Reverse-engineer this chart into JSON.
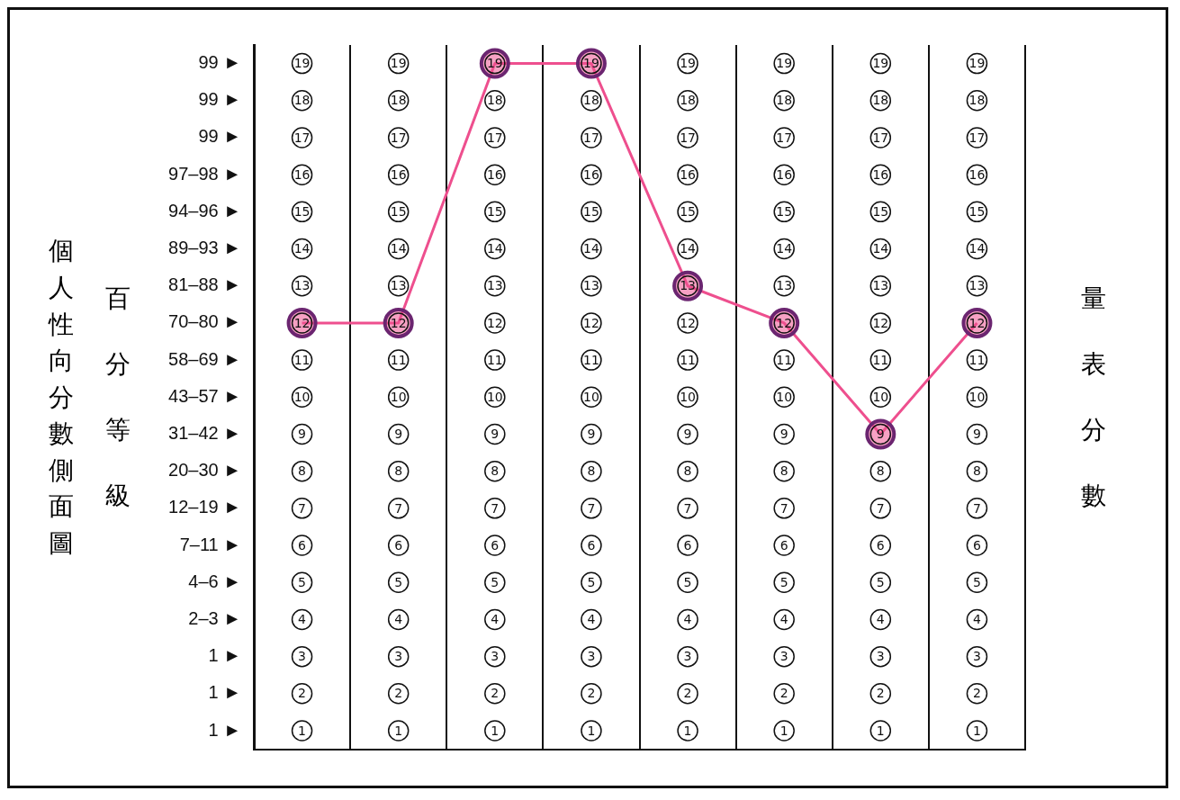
{
  "chart_data": {
    "type": "line",
    "title": "個人性向分數側面圖",
    "ylabel": "百分等級",
    "y2label": "量表分數",
    "categories": [
      null,
      null,
      null,
      null,
      null,
      null,
      null,
      null
    ],
    "series": [
      {
        "color": "#ee4f8e",
        "values": [
          12,
          12,
          19,
          19,
          13,
          12,
          9,
          12
        ]
      }
    ],
    "ylim": [
      0.5,
      19.5
    ],
    "yticks": [
      1,
      2,
      3,
      4,
      5,
      6,
      7,
      8,
      9,
      10,
      11,
      12,
      13,
      14,
      15,
      16,
      17,
      18,
      19
    ],
    "annotations": [
      "99 ►",
      "99 ►",
      "99 ►",
      "97–98 ►",
      "94–96 ►",
      "89–93 ►",
      "81–88 ►",
      "70–80 ►",
      "58–69 ►",
      "43–57 ►",
      "31–42 ►",
      "20–30 ►",
      "12–19 ►",
      "7–11 ►",
      "4–6 ►",
      "2–3 ►",
      "1 ►",
      "1 ►",
      "1 ►",
      "19",
      "18",
      "17",
      "16",
      "15",
      "14",
      "13",
      "12",
      "11",
      "10",
      "9",
      "8",
      "7",
      "6",
      "5",
      "4",
      "3",
      "2",
      "1",
      "19",
      "18",
      "17",
      "16",
      "15",
      "14",
      "13",
      "12",
      "11",
      "10",
      "9",
      "8",
      "7",
      "6",
      "5",
      "4",
      "3",
      "2",
      "1",
      "19",
      "18",
      "17",
      "16",
      "15",
      "14",
      "13",
      "12",
      "11",
      "10",
      "9",
      "8",
      "7",
      "6",
      "5",
      "4",
      "3",
      "2",
      "1",
      "19",
      "18",
      "17",
      "16",
      "15",
      "14",
      "13",
      "12",
      "11",
      "10",
      "9",
      "8",
      "7",
      "6",
      "5",
      "4",
      "3",
      "2",
      "1",
      "19",
      "18",
      "17",
      "16",
      "15",
      "14",
      "13",
      "12",
      "11",
      "10",
      "9",
      "8",
      "7",
      "6",
      "5",
      "4",
      "3",
      "2",
      "1",
      "19",
      "18",
      "17",
      "16",
      "15",
      "14",
      "13",
      "12",
      "11",
      "10",
      "9",
      "8",
      "7",
      "6",
      "5",
      "4",
      "3",
      "2",
      "1",
      "19",
      "18",
      "17",
      "16",
      "15",
      "14",
      "13",
      "12",
      "11",
      "10",
      "9",
      "8",
      "7",
      "6",
      "5",
      "4",
      "3",
      "2",
      "1"
    ],
    "grid": "x",
    "marker": "circle",
    "line_style": "solid",
    "legend": false
  }
}
